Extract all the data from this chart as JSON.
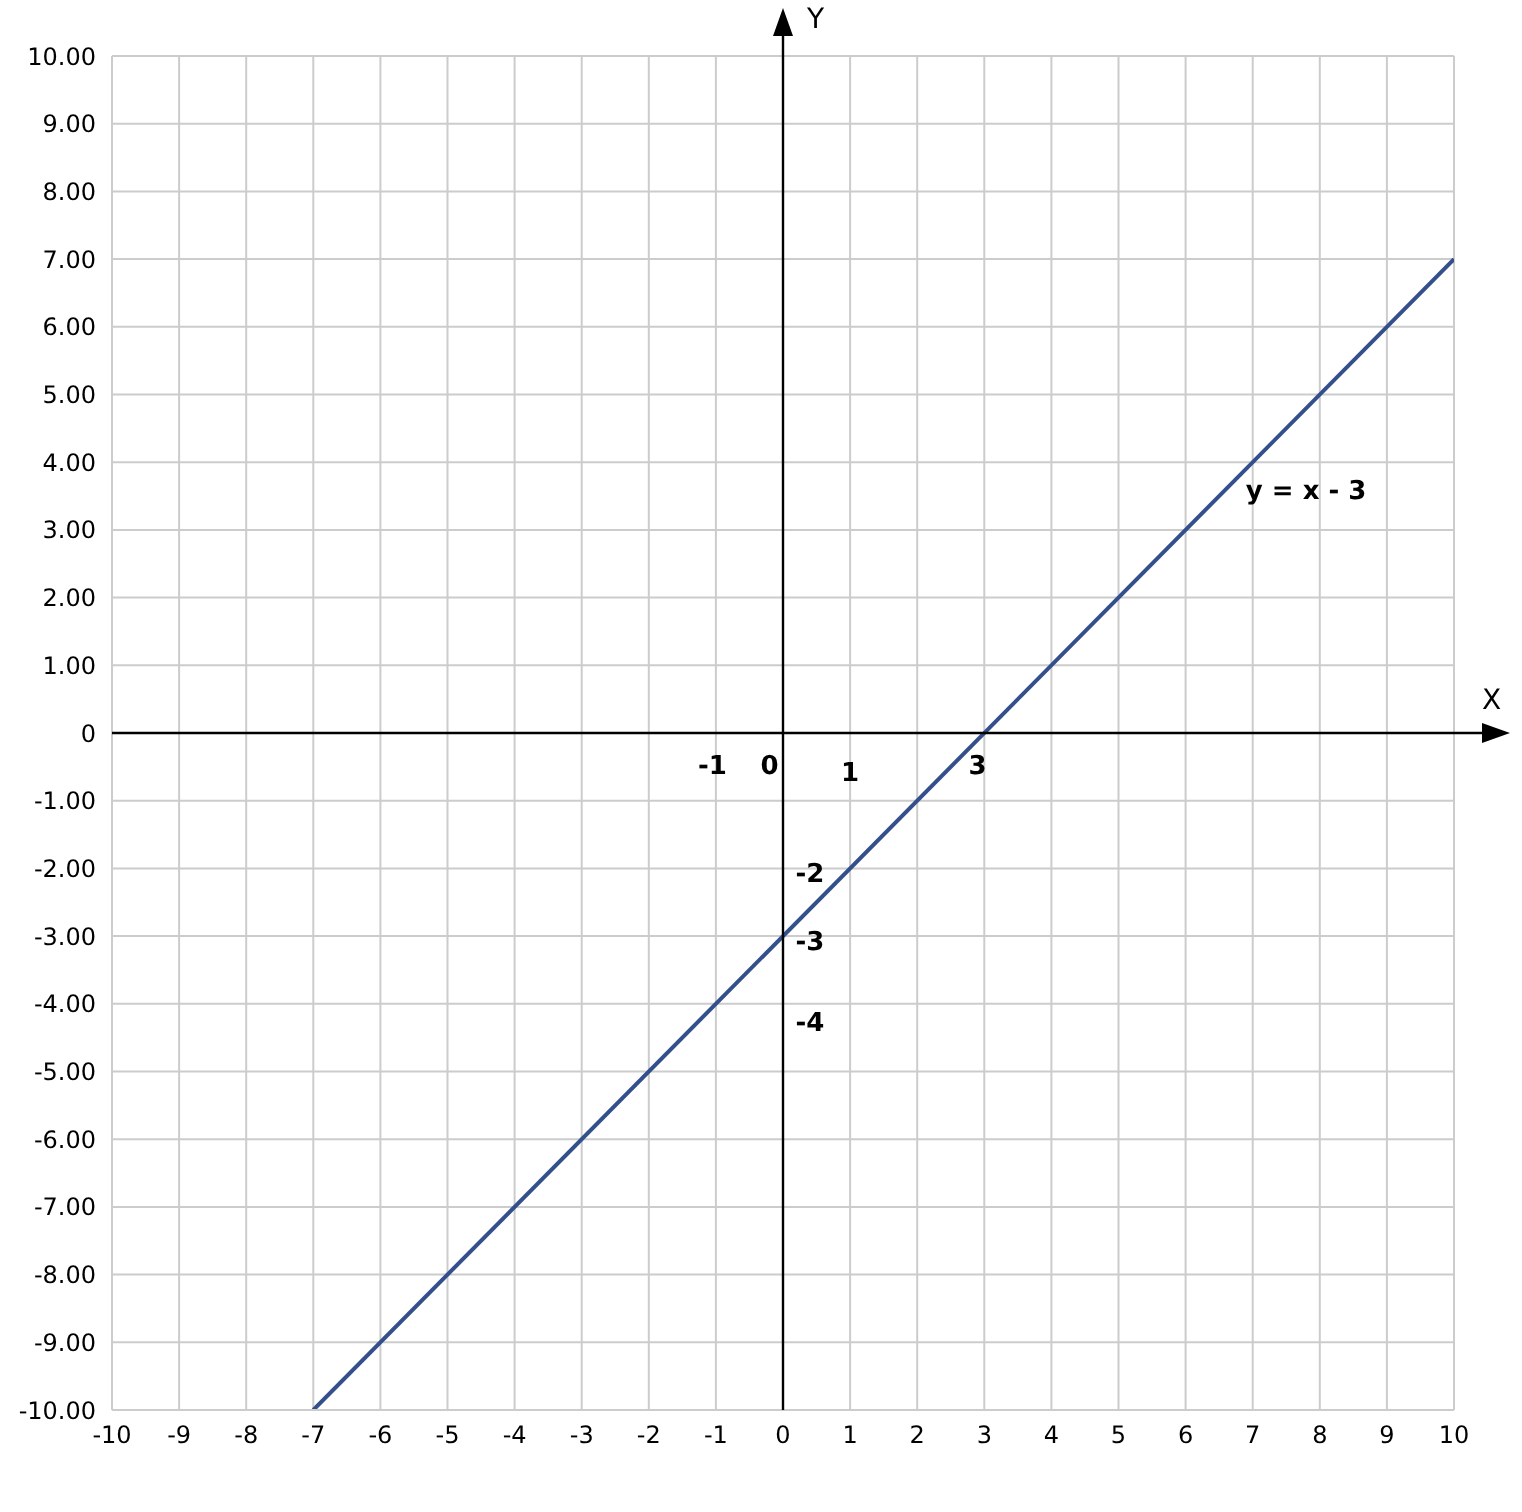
{
  "chart_data": {
    "type": "line",
    "xlabel": "X",
    "ylabel": "Y",
    "series": [
      {
        "color": "#34508c",
        "x": [
          -7,
          10
        ],
        "values": [
          -10,
          7
        ]
      }
    ],
    "xlim": [
      -10,
      10
    ],
    "ylim": [
      -10,
      10
    ],
    "xticks": [
      -10,
      -9,
      -8,
      -7,
      -6,
      -5,
      -4,
      -3,
      -2,
      -1,
      0,
      1,
      2,
      3,
      4,
      5,
      6,
      7,
      8,
      9,
      10
    ],
    "yticks": [
      {
        "value": -10,
        "label": "-10.00"
      },
      {
        "value": -9,
        "label": "-9.00"
      },
      {
        "value": -8,
        "label": "-8.00"
      },
      {
        "value": -7,
        "label": "-7.00"
      },
      {
        "value": -6,
        "label": "-6.00"
      },
      {
        "value": -5,
        "label": "-5.00"
      },
      {
        "value": -4,
        "label": "-4.00"
      },
      {
        "value": -3,
        "label": "-3.00"
      },
      {
        "value": -2,
        "label": "-2.00"
      },
      {
        "value": -1,
        "label": "-1.00"
      },
      0,
      {
        "value": 1,
        "label": "1.00"
      },
      {
        "value": 2,
        "label": "2.00"
      },
      {
        "value": 3,
        "label": "3.00"
      },
      {
        "value": 4,
        "label": "4.00"
      },
      {
        "value": 5,
        "label": "5.00"
      },
      {
        "value": 6,
        "label": "6.00"
      },
      {
        "value": 7,
        "label": "7.00"
      },
      {
        "value": 8,
        "label": "8.00"
      },
      {
        "value": 9,
        "label": "9.00"
      },
      {
        "value": 10,
        "label": "10.00"
      }
    ],
    "grid": true,
    "marker": "none",
    "line_style": "solid",
    "annotations": [
      "-1",
      "0",
      "1",
      "3",
      "-2",
      "-3",
      "-4",
      {
        "text": "y = x - 3",
        "x": 6.6,
        "y": 3.6
      }
    ]
  }
}
